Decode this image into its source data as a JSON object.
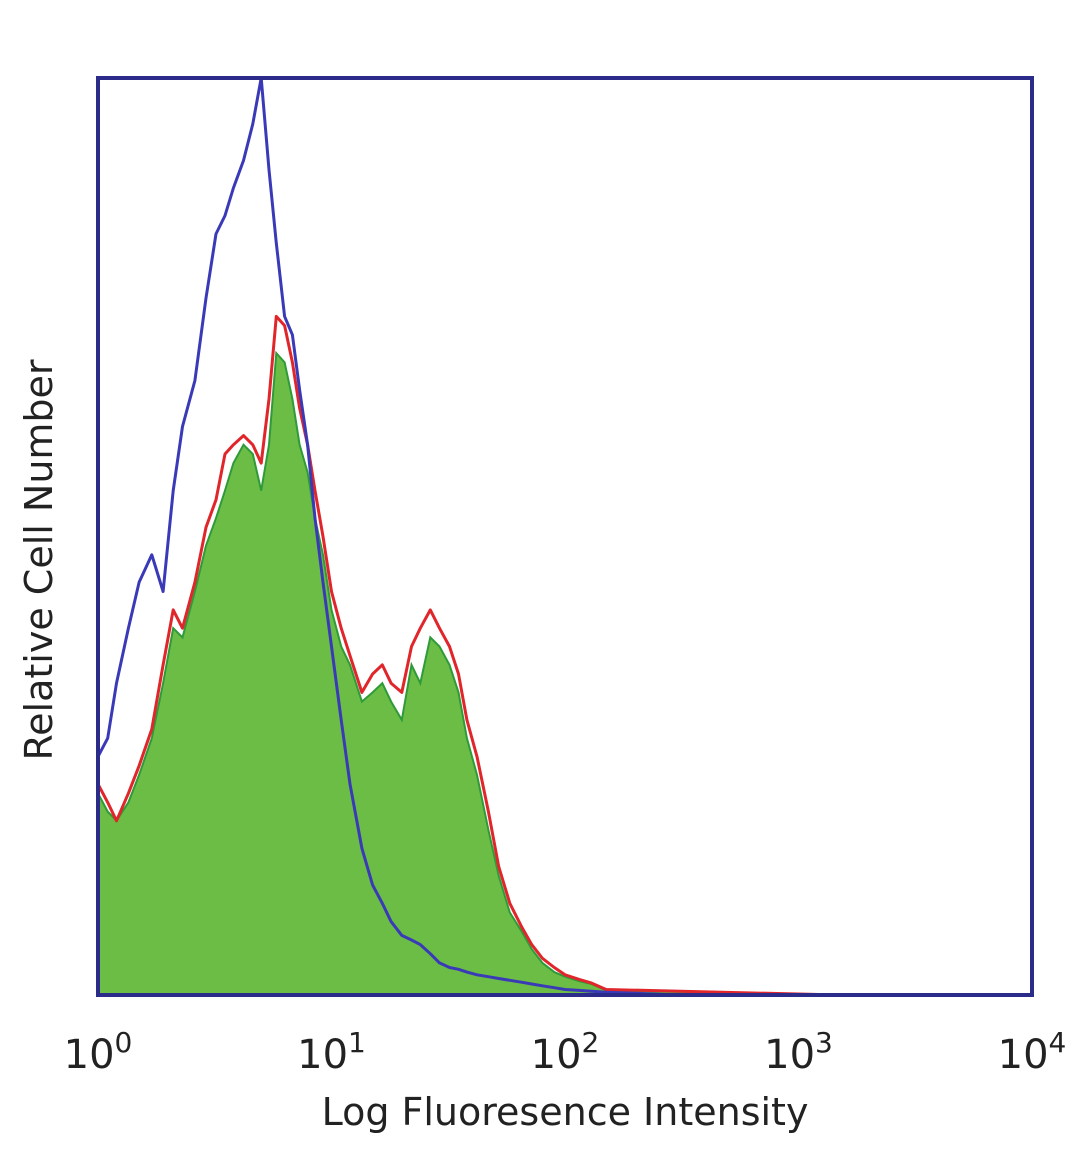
{
  "chart_data": {
    "type": "area",
    "xscale": "log",
    "xlim": [
      1,
      10000
    ],
    "ylim": [
      0,
      1
    ],
    "grid": false,
    "legend": "none",
    "xlabel": "Log Fluoresence Intensity",
    "ylabel": "Relative Cell Number",
    "xticks": [
      {
        "value": 1,
        "base": "10",
        "exp": "0"
      },
      {
        "value": 10,
        "base": "10",
        "exp": "1"
      },
      {
        "value": 100,
        "base": "10",
        "exp": "2"
      },
      {
        "value": 1000,
        "base": "10",
        "exp": "3"
      },
      {
        "value": 10000,
        "base": "10",
        "exp": "4"
      }
    ],
    "colors": {
      "frame": "#2b2b8a",
      "fill": "#6cbd45",
      "fill_edge": "#2f9a3a",
      "blue": "#3a3ab8",
      "red": "#e0262b"
    },
    "series": [
      {
        "style": "filled",
        "color": "#6cbd45",
        "x": [
          1.0,
          1.1,
          1.2,
          1.35,
          1.5,
          1.7,
          1.9,
          2.1,
          2.3,
          2.6,
          2.9,
          3.2,
          3.5,
          3.8,
          4.2,
          4.6,
          5.0,
          5.4,
          5.8,
          6.3,
          6.8,
          7.3,
          7.9,
          8.5,
          9.2,
          10.0,
          11.0,
          12.0,
          13.5,
          15.0,
          16.5,
          18.0,
          20.0,
          22.0,
          24.0,
          26.5,
          29.0,
          32.0,
          35.0,
          38.0,
          42.0,
          47.0,
          52.0,
          58.0,
          65.0,
          72.0,
          80.0,
          90.0,
          100.0,
          115.0,
          130.0,
          150.0,
          1500.0,
          10000.0
        ],
        "y": [
          0.22,
          0.2,
          0.19,
          0.21,
          0.24,
          0.28,
          0.34,
          0.4,
          0.39,
          0.44,
          0.49,
          0.52,
          0.55,
          0.58,
          0.6,
          0.59,
          0.55,
          0.6,
          0.7,
          0.69,
          0.65,
          0.6,
          0.57,
          0.52,
          0.48,
          0.42,
          0.38,
          0.36,
          0.32,
          0.33,
          0.34,
          0.32,
          0.3,
          0.36,
          0.34,
          0.39,
          0.38,
          0.36,
          0.33,
          0.28,
          0.24,
          0.18,
          0.13,
          0.09,
          0.07,
          0.05,
          0.035,
          0.025,
          0.02,
          0.015,
          0.012,
          0.005,
          0.0,
          0.0
        ]
      },
      {
        "style": "outline",
        "color": "#e0262b",
        "x": [
          1.0,
          1.1,
          1.2,
          1.35,
          1.5,
          1.7,
          1.9,
          2.1,
          2.3,
          2.6,
          2.9,
          3.2,
          3.5,
          3.8,
          4.2,
          4.6,
          5.0,
          5.4,
          5.8,
          6.3,
          6.8,
          7.3,
          7.9,
          8.5,
          9.2,
          10.0,
          11.0,
          12.0,
          13.5,
          15.0,
          16.5,
          18.0,
          20.0,
          22.0,
          24.0,
          26.5,
          29.0,
          32.0,
          35.0,
          38.0,
          42.0,
          47.0,
          52.0,
          58.0,
          65.0,
          72.0,
          80.0,
          90.0,
          100.0,
          115.0,
          130.0,
          150.0,
          1500.0,
          10000.0
        ],
        "y": [
          0.23,
          0.21,
          0.19,
          0.22,
          0.25,
          0.29,
          0.36,
          0.42,
          0.4,
          0.45,
          0.51,
          0.54,
          0.59,
          0.6,
          0.61,
          0.6,
          0.58,
          0.65,
          0.74,
          0.73,
          0.69,
          0.64,
          0.6,
          0.55,
          0.5,
          0.44,
          0.4,
          0.37,
          0.33,
          0.35,
          0.36,
          0.34,
          0.33,
          0.38,
          0.4,
          0.42,
          0.4,
          0.38,
          0.35,
          0.3,
          0.26,
          0.2,
          0.14,
          0.1,
          0.075,
          0.055,
          0.04,
          0.03,
          0.022,
          0.017,
          0.013,
          0.006,
          0.0,
          0.0
        ]
      },
      {
        "style": "outline",
        "color": "#3a3ab8",
        "x": [
          1.0,
          1.1,
          1.2,
          1.35,
          1.5,
          1.7,
          1.9,
          2.1,
          2.3,
          2.6,
          2.9,
          3.2,
          3.5,
          3.8,
          4.2,
          4.6,
          5.0,
          5.4,
          5.8,
          6.3,
          6.8,
          7.3,
          7.9,
          8.5,
          9.2,
          10.0,
          11.0,
          12.0,
          13.5,
          15.0,
          16.5,
          18.0,
          20.0,
          22.0,
          24.0,
          26.5,
          29.0,
          32.0,
          35.0,
          38.0,
          42.0,
          47.0,
          52.0,
          58.0,
          65.0,
          72.0,
          80.0,
          90.0,
          100.0,
          115.0,
          130.0,
          150.0,
          200.0,
          300.0,
          10000.0
        ],
        "y": [
          0.26,
          0.28,
          0.34,
          0.4,
          0.45,
          0.48,
          0.44,
          0.55,
          0.62,
          0.67,
          0.76,
          0.83,
          0.85,
          0.88,
          0.91,
          0.95,
          1.0,
          0.9,
          0.82,
          0.74,
          0.72,
          0.66,
          0.6,
          0.52,
          0.45,
          0.38,
          0.3,
          0.23,
          0.16,
          0.12,
          0.1,
          0.08,
          0.065,
          0.06,
          0.055,
          0.045,
          0.035,
          0.03,
          0.028,
          0.025,
          0.022,
          0.02,
          0.018,
          0.016,
          0.014,
          0.012,
          0.01,
          0.008,
          0.006,
          0.005,
          0.004,
          0.003,
          0.002,
          0.0,
          0.0
        ]
      }
    ]
  }
}
